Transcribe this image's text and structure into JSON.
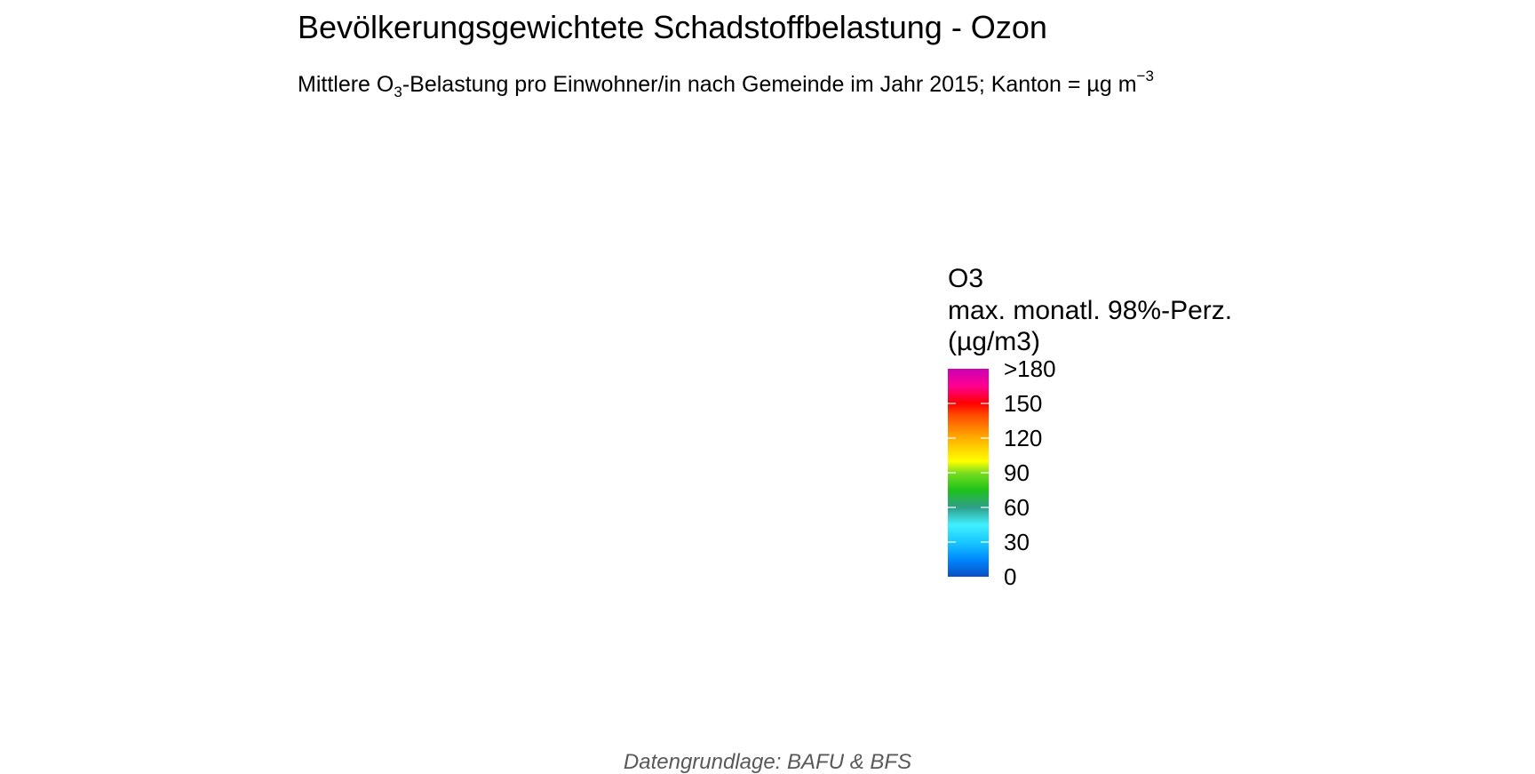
{
  "header": {
    "title": "Bevölkerungsgewichtete Schadstoffbelastung - Ozon",
    "subtitle_part1": "Mittlere O",
    "subtitle_sub": "3",
    "subtitle_part2": "-Belastung pro Einwohner/in nach Gemeinde im Jahr 2015; Kanton =  µg m",
    "subtitle_sup": "−3"
  },
  "chart_data": {
    "type": "heatmap",
    "title": "Bevölkerungsgewichtete Schadstoffbelastung - Ozon",
    "subtitle": "Mittlere O3-Belastung pro Einwohner/in nach Gemeinde im Jahr 2015; Kanton =  µg m−3",
    "caption": "Datengrundlage: BAFU & BFS",
    "legend": {
      "title_lines": [
        "O3",
        "max. monatl. 98%-Perz.",
        "(µg/m3)"
      ],
      "placement": "right",
      "scale_min": 0,
      "scale_max": 180,
      "ticks": [
        {
          "value": 0,
          "label": "0"
        },
        {
          "value": 30,
          "label": "30"
        },
        {
          "value": 60,
          "label": "60"
        },
        {
          "value": 90,
          "label": "90"
        },
        {
          "value": 120,
          "label": "120"
        },
        {
          "value": 150,
          "label": "150"
        },
        {
          "value": 180,
          "label": ">180"
        }
      ],
      "color_stops": [
        {
          "value": 0,
          "color": "#0a4fc4"
        },
        {
          "value": 15,
          "color": "#0088ff"
        },
        {
          "value": 30,
          "color": "#18c8ff"
        },
        {
          "value": 45,
          "color": "#40f0ff"
        },
        {
          "value": 60,
          "color": "#2f9e8a"
        },
        {
          "value": 75,
          "color": "#1ec21a"
        },
        {
          "value": 90,
          "color": "#7add1e"
        },
        {
          "value": 100,
          "color": "#ffff00"
        },
        {
          "value": 120,
          "color": "#ffae00"
        },
        {
          "value": 140,
          "color": "#ff4a00"
        },
        {
          "value": 150,
          "color": "#ff0000"
        },
        {
          "value": 165,
          "color": "#ff0090"
        },
        {
          "value": 180,
          "color": "#cc00b4"
        }
      ]
    },
    "series": []
  },
  "footer": {
    "caption": "Datengrundlage: BAFU & BFS"
  }
}
